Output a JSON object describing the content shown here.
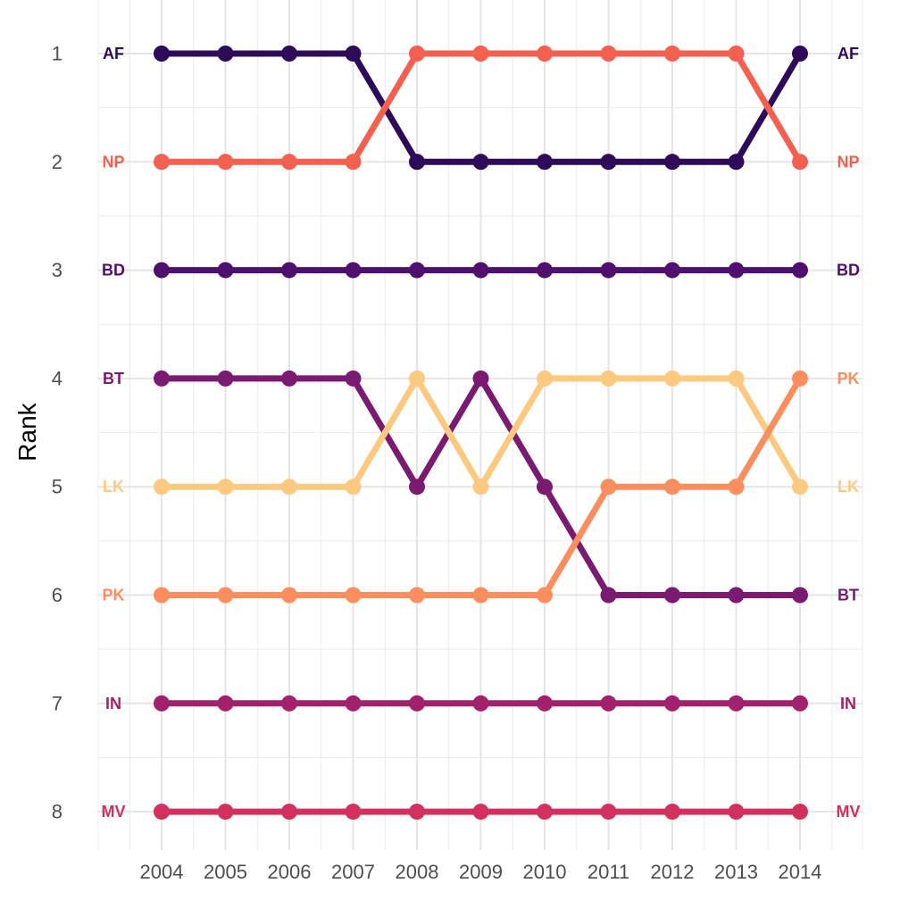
{
  "chart_data": {
    "type": "line",
    "title": "",
    "xlabel": "",
    "ylabel": "Rank",
    "x": [
      2004,
      2005,
      2006,
      2007,
      2008,
      2009,
      2010,
      2011,
      2012,
      2013,
      2014
    ],
    "y_ticks": [
      1,
      2,
      3,
      4,
      5,
      6,
      7,
      8
    ],
    "ylim": [
      8,
      1
    ],
    "y_reversed": true,
    "grid": true,
    "legend": "none (series labels at both ends of lines)",
    "series": [
      {
        "name": "AF",
        "color": "#2d0b59",
        "values": [
          1,
          1,
          1,
          1,
          2,
          2,
          2,
          2,
          2,
          2,
          1
        ]
      },
      {
        "name": "NP",
        "color": "#f4604f",
        "values": [
          2,
          2,
          2,
          2,
          1,
          1,
          1,
          1,
          1,
          1,
          2
        ]
      },
      {
        "name": "BD",
        "color": "#4f0f6f",
        "values": [
          3,
          3,
          3,
          3,
          3,
          3,
          3,
          3,
          3,
          3,
          3
        ]
      },
      {
        "name": "BT",
        "color": "#7a1a71",
        "values": [
          4,
          4,
          4,
          4,
          5,
          4,
          5,
          6,
          6,
          6,
          6
        ]
      },
      {
        "name": "LK",
        "color": "#fcc981",
        "values": [
          5,
          5,
          5,
          5,
          4,
          5,
          4,
          4,
          4,
          4,
          5
        ]
      },
      {
        "name": "PK",
        "color": "#fb8e5e",
        "values": [
          6,
          6,
          6,
          6,
          6,
          6,
          6,
          5,
          5,
          5,
          4
        ]
      },
      {
        "name": "IN",
        "color": "#a2216c",
        "values": [
          7,
          7,
          7,
          7,
          7,
          7,
          7,
          7,
          7,
          7,
          7
        ]
      },
      {
        "name": "MV",
        "color": "#d1315c",
        "values": [
          8,
          8,
          8,
          8,
          8,
          8,
          8,
          8,
          8,
          8,
          8
        ]
      }
    ]
  }
}
